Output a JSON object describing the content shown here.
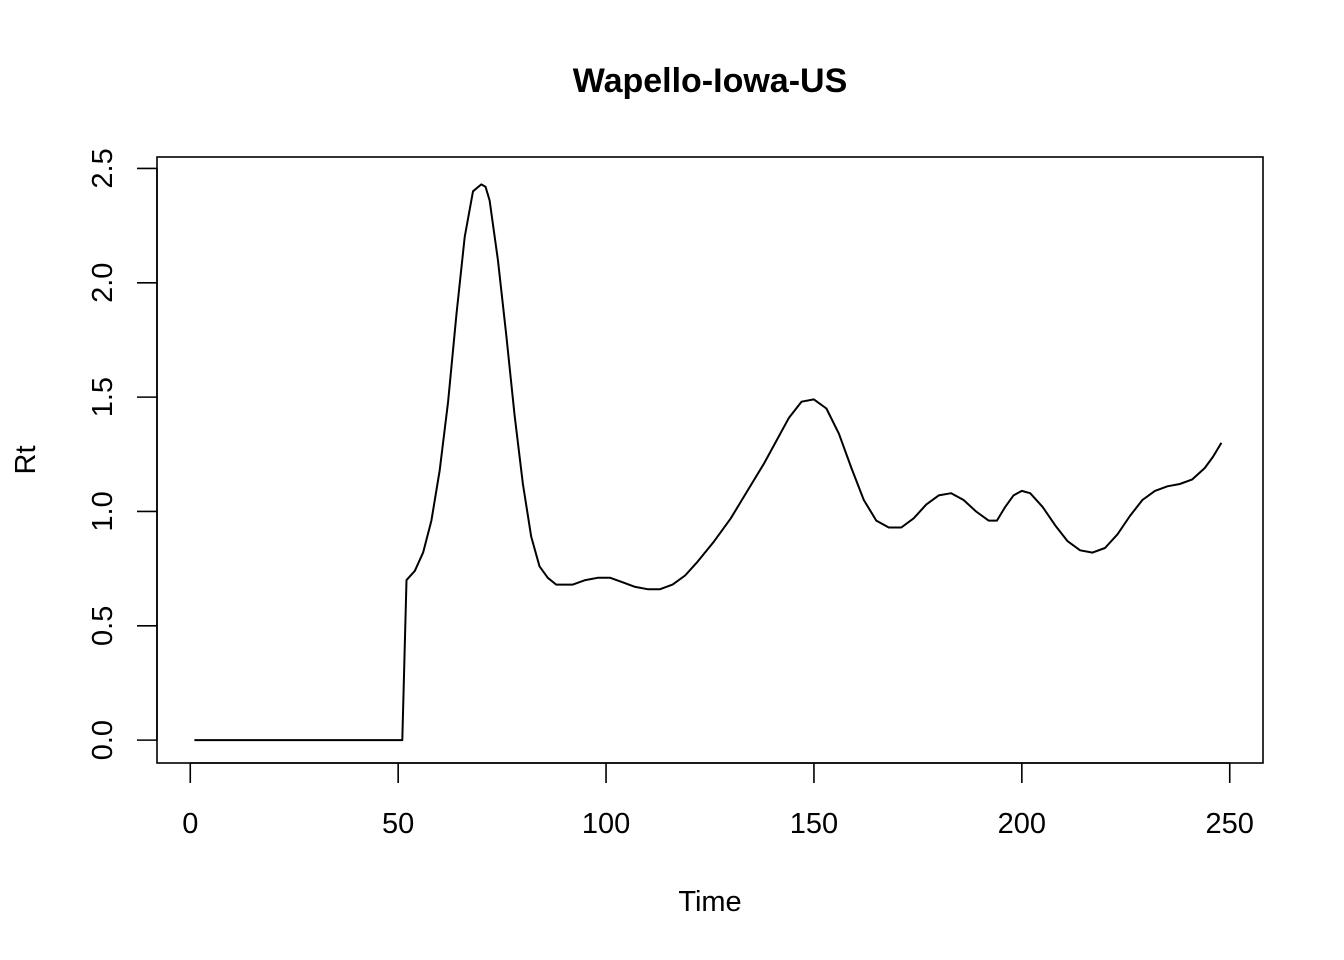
{
  "chart_data": {
    "type": "line",
    "title": "Wapello-Iowa-US",
    "xlabel": "Time",
    "ylabel": "Rt",
    "xlim": [
      -8,
      258
    ],
    "ylim": [
      -0.1,
      2.55
    ],
    "xticks": [
      0,
      50,
      100,
      150,
      200,
      250
    ],
    "yticks": [
      0.0,
      0.5,
      1.0,
      1.5,
      2.0,
      2.5
    ],
    "xtick_labels": [
      "0",
      "50",
      "100",
      "150",
      "200",
      "250"
    ],
    "ytick_labels": [
      "0.0",
      "0.5",
      "1.0",
      "1.5",
      "2.0",
      "2.5"
    ],
    "grid": false,
    "legend": "none",
    "line_color": "#000000",
    "series": [
      {
        "x": [
          1,
          10,
          20,
          30,
          40,
          50,
          51,
          52,
          54,
          56,
          58,
          60,
          62,
          64,
          66,
          68,
          70,
          71,
          72,
          74,
          76,
          78,
          80,
          82,
          84,
          86,
          88,
          90,
          92,
          95,
          98,
          101,
          104,
          107,
          110,
          113,
          116,
          119,
          122,
          126,
          130,
          134,
          138,
          141,
          144,
          147,
          150,
          153,
          156,
          159,
          162,
          165,
          168,
          171,
          174,
          177,
          180,
          183,
          186,
          189,
          192,
          194,
          196,
          198,
          200,
          202,
          205,
          208,
          211,
          214,
          217,
          220,
          223,
          226,
          229,
          232,
          235,
          238,
          241,
          244,
          246,
          248
        ],
        "y": [
          0.0,
          0.0,
          0.0,
          0.0,
          0.0,
          0.0,
          0.0,
          0.7,
          0.74,
          0.82,
          0.96,
          1.18,
          1.48,
          1.86,
          2.2,
          2.4,
          2.43,
          2.42,
          2.36,
          2.1,
          1.77,
          1.42,
          1.12,
          0.89,
          0.76,
          0.71,
          0.68,
          0.68,
          0.68,
          0.7,
          0.71,
          0.71,
          0.69,
          0.67,
          0.66,
          0.66,
          0.68,
          0.72,
          0.78,
          0.87,
          0.97,
          1.09,
          1.21,
          1.31,
          1.41,
          1.48,
          1.49,
          1.45,
          1.34,
          1.19,
          1.05,
          0.96,
          0.93,
          0.93,
          0.97,
          1.03,
          1.07,
          1.08,
          1.05,
          1.0,
          0.96,
          0.96,
          1.02,
          1.07,
          1.09,
          1.08,
          1.02,
          0.94,
          0.87,
          0.83,
          0.82,
          0.84,
          0.9,
          0.98,
          1.05,
          1.09,
          1.11,
          1.12,
          1.14,
          1.19,
          1.24,
          1.3
        ]
      }
    ]
  }
}
